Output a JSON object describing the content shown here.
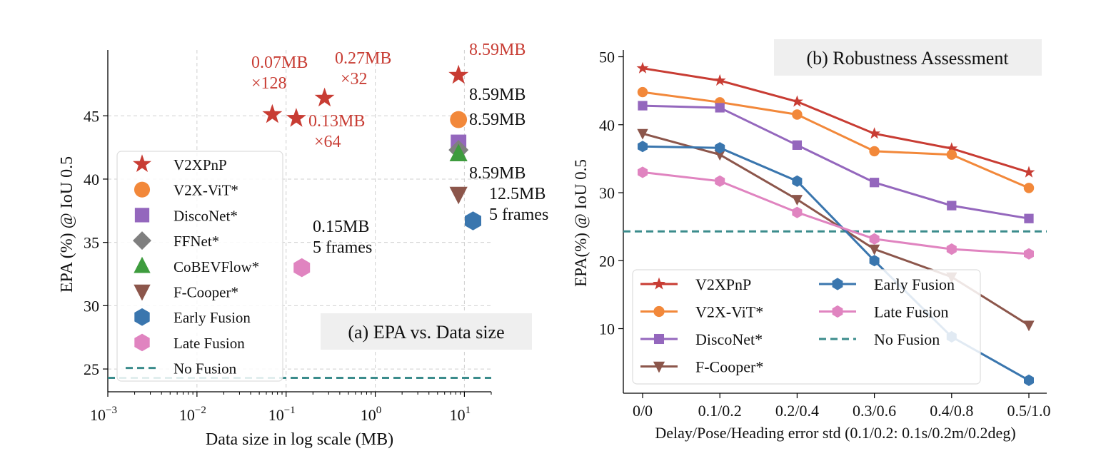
{
  "chart_data": [
    {
      "type": "scatter",
      "title": "(a) EPA vs. Data size",
      "xlabel": "Data size in log scale (MB)",
      "ylabel": "EPA (%) @ IoU 0.5",
      "x_scale": "log",
      "xlim": [
        0.001,
        20
      ],
      "ylim": [
        23.2,
        50.2
      ],
      "x_ticks": [
        0.001,
        0.01,
        0.1,
        1,
        10
      ],
      "x_tick_bases": [
        "10",
        "10",
        "10",
        "10",
        "10"
      ],
      "x_tick_exponents": [
        "−3",
        "−2",
        "−1",
        "0",
        "1"
      ],
      "y_ticks": [
        "25",
        "30",
        "35",
        "40",
        "45"
      ],
      "y_tick_values": [
        25,
        30,
        35,
        40,
        45
      ],
      "grid": true,
      "legend_position": "lower-left",
      "legend": [
        "V2XPnP",
        "V2X-ViT*",
        "DiscoNet*",
        "FFNet*",
        "CoBEVFlow*",
        "F-Cooper*",
        "Early Fusion",
        "Late Fusion",
        "No Fusion"
      ],
      "series": [
        {
          "name": "V2XPnP",
          "marker": "star",
          "color": "#c83c33",
          "points": [
            {
              "x": 0.07,
              "y": 45.1
            },
            {
              "x": 0.13,
              "y": 44.8
            },
            {
              "x": 0.27,
              "y": 46.4
            },
            {
              "x": 8.59,
              "y": 48.2
            }
          ]
        },
        {
          "name": "V2X-ViT*",
          "marker": "circle",
          "color": "#f2883a",
          "points": [
            {
              "x": 8.59,
              "y": 44.7
            }
          ]
        },
        {
          "name": "DiscoNet*",
          "marker": "square",
          "color": "#9467bd",
          "points": [
            {
              "x": 8.59,
              "y": 42.9
            }
          ]
        },
        {
          "name": "FFNet*",
          "marker": "diamond",
          "color": "#7f7f7f",
          "points": [
            {
              "x": 8.59,
              "y": 42.3
            }
          ]
        },
        {
          "name": "CoBEVFlow*",
          "marker": "triangle-up",
          "color": "#3e9c3e",
          "points": [
            {
              "x": 8.59,
              "y": 42.0
            }
          ]
        },
        {
          "name": "F-Cooper*",
          "marker": "triangle-down",
          "color": "#8c564b",
          "points": [
            {
              "x": 8.59,
              "y": 38.8
            }
          ]
        },
        {
          "name": "Early Fusion",
          "marker": "hexagon",
          "color": "#3a76ae",
          "points": [
            {
              "x": 12.5,
              "y": 36.7
            }
          ]
        },
        {
          "name": "Late Fusion",
          "marker": "hexagon",
          "color": "#e084c0",
          "points": [
            {
              "x": 0.15,
              "y": 33.0
            }
          ]
        },
        {
          "name": "No Fusion",
          "marker": "dashed-line",
          "color": "#3b8c8c",
          "y": 24.3
        }
      ],
      "annotations": [
        {
          "lines": [
            "0.07MB",
            "×128"
          ],
          "color": "#c83c33"
        },
        {
          "lines": [
            "0.27MB",
            "×32"
          ],
          "color": "#c83c33"
        },
        {
          "lines": [
            "0.13MB",
            "×64"
          ],
          "color": "#c83c33"
        },
        {
          "lines": [
            "8.59MB"
          ],
          "color": "#c83c33"
        },
        {
          "lines": [
            "8.59MB"
          ],
          "color": "#111111"
        },
        {
          "lines": [
            "8.59MB"
          ],
          "color": "#111111"
        },
        {
          "lines": [
            "8.59MB"
          ],
          "color": "#111111"
        },
        {
          "lines": [
            "12.5MB",
            "5 frames"
          ],
          "color": "#111111"
        },
        {
          "lines": [
            "0.15MB",
            "5 frames"
          ],
          "color": "#111111"
        }
      ]
    },
    {
      "type": "line",
      "title": "(b) Robustness Assessment",
      "xlabel": "Delay/Pose/Heading error std (0.1/0.2: 0.1s/0.2m/0.2deg)",
      "ylabel": "EPA(%) @ IoU 0.5",
      "categories": [
        "0/0",
        "0.1/0.2",
        "0.2/0.4",
        "0.3/0.6",
        "0.4/0.8",
        "0.5/1.0"
      ],
      "ylim": [
        0.5,
        51
      ],
      "y_ticks": [
        "10",
        "20",
        "30",
        "40",
        "50"
      ],
      "y_tick_values": [
        10,
        20,
        30,
        40,
        50
      ],
      "grid": false,
      "legend_position": "lower-left",
      "legend": [
        "V2XPnP",
        "V2X-ViT*",
        "DiscoNet*",
        "F-Cooper*",
        "Early Fusion",
        "Late Fusion",
        "No Fusion"
      ],
      "series": [
        {
          "name": "V2XPnP",
          "marker": "star",
          "color": "#c83c33",
          "values": [
            48.3,
            46.5,
            43.4,
            38.7,
            36.5,
            33.0
          ]
        },
        {
          "name": "V2X-ViT*",
          "marker": "circle",
          "color": "#f2883a",
          "values": [
            44.8,
            43.3,
            41.5,
            36.1,
            35.6,
            30.7
          ]
        },
        {
          "name": "DiscoNet*",
          "marker": "square",
          "color": "#9467bd",
          "values": [
            42.8,
            42.5,
            37.0,
            31.5,
            28.1,
            26.2
          ]
        },
        {
          "name": "F-Cooper*",
          "marker": "triangle-down",
          "color": "#8c564b",
          "values": [
            38.7,
            35.6,
            29.0,
            21.7,
            17.6,
            10.5
          ]
        },
        {
          "name": "Early Fusion",
          "marker": "hexagon",
          "color": "#3a76ae",
          "values": [
            36.8,
            36.6,
            31.7,
            20.0,
            8.8,
            2.4
          ]
        },
        {
          "name": "Late Fusion",
          "marker": "hexagon",
          "color": "#e084c0",
          "values": [
            33.0,
            31.7,
            27.1,
            23.2,
            21.7,
            21.0
          ]
        },
        {
          "name": "No Fusion",
          "marker": "dashed-line",
          "color": "#3b8c8c",
          "y": 24.3
        }
      ]
    }
  ]
}
